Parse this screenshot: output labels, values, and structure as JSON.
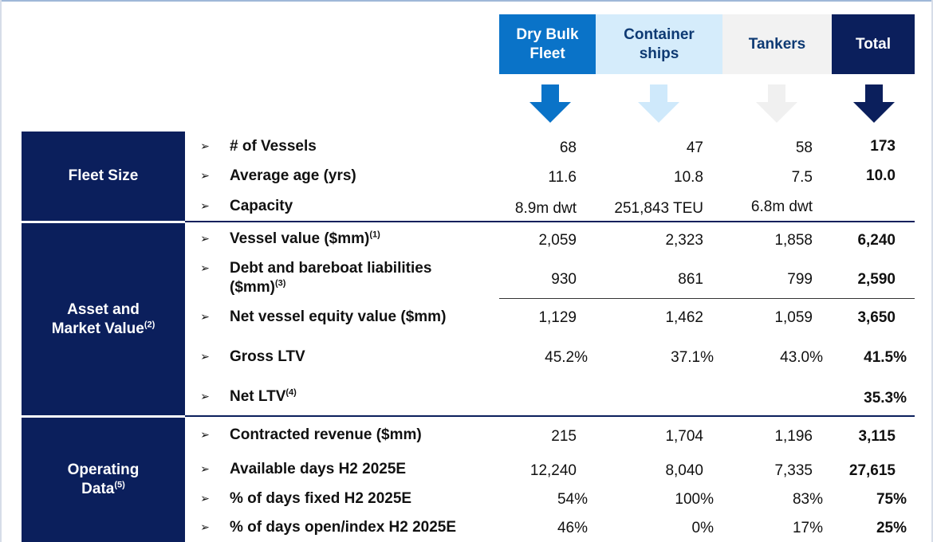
{
  "columns": {
    "dry_bulk": {
      "line1": "Dry Bulk",
      "line2": "Fleet"
    },
    "container": {
      "line1": "Container",
      "line2": "ships"
    },
    "tankers": "Tankers",
    "total": "Total"
  },
  "colors": {
    "dry_bulk": "#0a73c8",
    "container": "#d5ecfb",
    "tankers": "#f2f2f2",
    "total": "#0b1f5c"
  },
  "sections": {
    "fleet_size": "Fleet Size",
    "asset_market": {
      "line1": "Asset and",
      "line2": "Market Value",
      "note": "(2)"
    },
    "operating": {
      "line1": "Operating",
      "line2": "Data",
      "note": "(5)"
    }
  },
  "bullet": "➢",
  "rows": {
    "vessels": {
      "label": "# of Vessels",
      "dry": "68",
      "cont": "47",
      "tank": "58",
      "total": "173"
    },
    "age": {
      "label": "Average age (yrs)",
      "dry": "11.6",
      "cont": "10.8",
      "tank": "7.5",
      "total": "10.0"
    },
    "capacity": {
      "label": "Capacity",
      "dry": "8.9m dwt",
      "cont": "251,843 TEU",
      "tank": "6.8m dwt",
      "total": ""
    },
    "vessel_value": {
      "label": "Vessel value ($mm)",
      "note": "(1)",
      "dry": "2,059",
      "cont": "2,323",
      "tank": "1,858",
      "total": "6,240"
    },
    "debt": {
      "label_line1": "Debt and bareboat liabilities",
      "label_line2": "($mm)",
      "note": "(3)",
      "dry": "930",
      "cont": "861",
      "tank": "799",
      "total": "2,590"
    },
    "net_equity": {
      "label": "Net vessel equity value ($mm)",
      "dry": "1,129",
      "cont": "1,462",
      "tank": "1,059",
      "total": "3,650"
    },
    "gross_ltv": {
      "label": "Gross LTV",
      "dry": "45.2%",
      "cont": "37.1%",
      "tank": "43.0%",
      "total": "41.5%"
    },
    "net_ltv": {
      "label": "Net LTV",
      "note": "(4)",
      "total": "35.3%"
    },
    "contracted_rev": {
      "label": "Contracted revenue ($mm)",
      "dry": "215",
      "cont": "1,704",
      "tank": "1,196",
      "total": "3,115"
    },
    "available_days": {
      "label": "Available days H2 2025E",
      "dry": "12,240",
      "cont": "8,040",
      "tank": "7,335",
      "total": "27,615"
    },
    "fixed": {
      "label": "% of days fixed H2 2025E",
      "dry": "54%",
      "cont": "100%",
      "tank": "83%",
      "total": "75%"
    },
    "open": {
      "label": "% of days open/index H2 2025E",
      "dry": "46%",
      "cont": "0%",
      "tank": "17%",
      "total": "25%"
    }
  }
}
